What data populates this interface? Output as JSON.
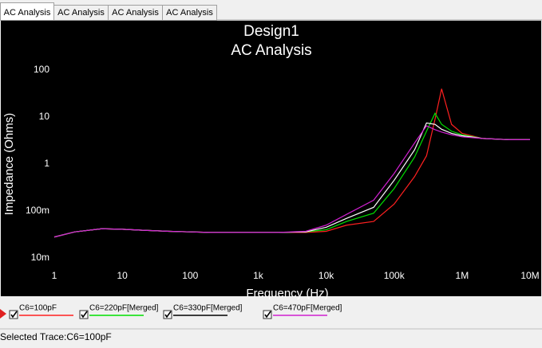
{
  "tabs": [
    "AC Analysis",
    "AC Analysis",
    "AC Analysis",
    "AC Analysis"
  ],
  "status": "Selected Trace:C6=100pF",
  "chart_data": {
    "type": "line",
    "title": "Design1",
    "subtitle": "AC Analysis",
    "x_label": "Frequency (Hz)",
    "y_label": "Impedance (Ohms)",
    "xlog": true,
    "ylog": true,
    "grid": false,
    "xlim": [
      1,
      10000000
    ],
    "xticks": [
      1,
      10,
      100,
      {
        "value": 1000,
        "label": "1k"
      },
      {
        "value": 10000,
        "label": "10k"
      },
      {
        "value": 100000,
        "label": "100k"
      },
      {
        "value": 1000000,
        "label": "1M"
      },
      {
        "value": 10000000,
        "label": "10M"
      }
    ],
    "ylim": [
      0.01,
      100
    ],
    "yticks": [
      {
        "value": 0.01,
        "label": "10m"
      },
      {
        "value": 0.1,
        "label": "100m"
      },
      1,
      10,
      100
    ],
    "x": [
      1,
      2,
      5,
      10,
      20,
      50,
      100,
      200,
      500,
      1000,
      2000,
      5000,
      10000,
      20000,
      50000,
      100000,
      200000,
      300000,
      400000,
      500000,
      700000,
      1000000,
      2000000,
      5000000,
      10000000
    ],
    "series": [
      {
        "name": "C6=100pF",
        "color": "#ff2020",
        "values": [
          0.028,
          0.036,
          0.042,
          0.041,
          0.039,
          0.037,
          0.036,
          0.035,
          0.035,
          0.035,
          0.035,
          0.035,
          0.037,
          0.05,
          0.06,
          0.14,
          0.54,
          1.5,
          9,
          40,
          7,
          4.5,
          3.5,
          3.3,
          3.3
        ]
      },
      {
        "name": "C6=220pF[Merged]",
        "color": "#00e000",
        "values": [
          0.028,
          0.036,
          0.042,
          0.041,
          0.039,
          0.037,
          0.036,
          0.035,
          0.035,
          0.035,
          0.035,
          0.036,
          0.04,
          0.06,
          0.09,
          0.3,
          1.4,
          5,
          12,
          7,
          5,
          4.2,
          3.5,
          3.3,
          3.3
        ]
      },
      {
        "name": "C6=330pF[Merged]",
        "color": "#ffffff",
        "values": [
          0.028,
          0.036,
          0.042,
          0.041,
          0.039,
          0.037,
          0.036,
          0.035,
          0.035,
          0.035,
          0.035,
          0.036,
          0.045,
          0.07,
          0.12,
          0.45,
          2,
          7.5,
          7,
          5.5,
          4.5,
          4,
          3.5,
          3.3,
          3.3
        ]
      },
      {
        "name": "C6=470pF[Merged]",
        "color": "#d020d0",
        "values": [
          0.028,
          0.036,
          0.042,
          0.041,
          0.039,
          0.037,
          0.036,
          0.035,
          0.035,
          0.035,
          0.035,
          0.037,
          0.05,
          0.085,
          0.17,
          0.63,
          2.8,
          6.5,
          5.4,
          4.8,
          4.2,
          3.8,
          3.5,
          3.3,
          3.3
        ]
      }
    ]
  }
}
